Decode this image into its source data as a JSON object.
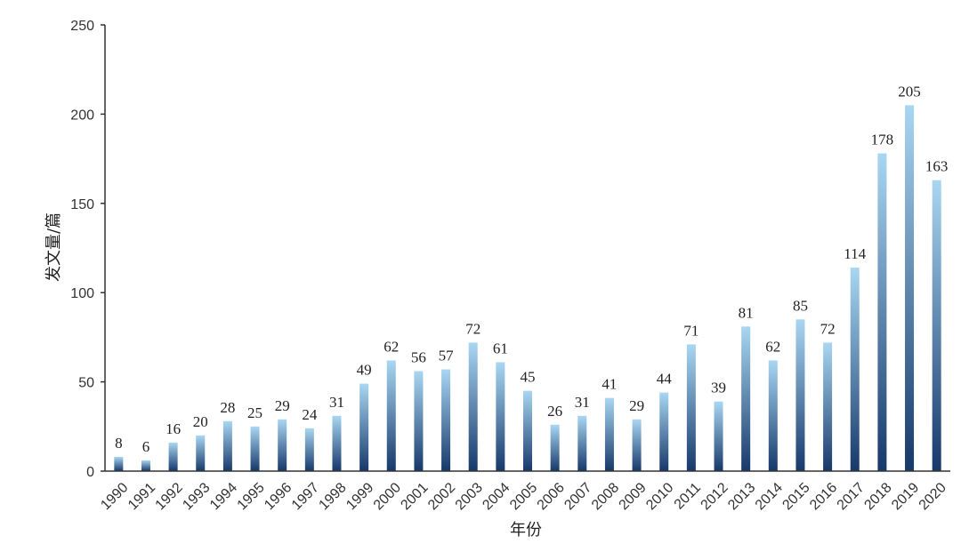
{
  "chart_data": {
    "type": "bar",
    "title": "",
    "xlabel": "年份",
    "ylabel": "发文量/篇",
    "ylim": [
      0,
      250
    ],
    "yticks": [
      0,
      50,
      100,
      150,
      200,
      250
    ],
    "grid": false,
    "categories": [
      "1990",
      "1991",
      "1992",
      "1993",
      "1994",
      "1995",
      "1996",
      "1997",
      "1998",
      "1999",
      "2000",
      "2001",
      "2002",
      "2003",
      "2004",
      "2005",
      "2006",
      "2007",
      "2008",
      "2009",
      "2010",
      "2011",
      "2012",
      "2013",
      "2014",
      "2015",
      "2016",
      "2017",
      "2018",
      "2019",
      "2020"
    ],
    "values": [
      8,
      6,
      16,
      20,
      28,
      25,
      29,
      24,
      31,
      49,
      62,
      56,
      57,
      72,
      61,
      45,
      26,
      31,
      41,
      29,
      44,
      71,
      39,
      81,
      62,
      85,
      72,
      114,
      178,
      205,
      163
    ],
    "colors": {
      "bar_top": "#a9d7f2",
      "bar_bottom": "#16386a",
      "axis": "#333333"
    }
  }
}
